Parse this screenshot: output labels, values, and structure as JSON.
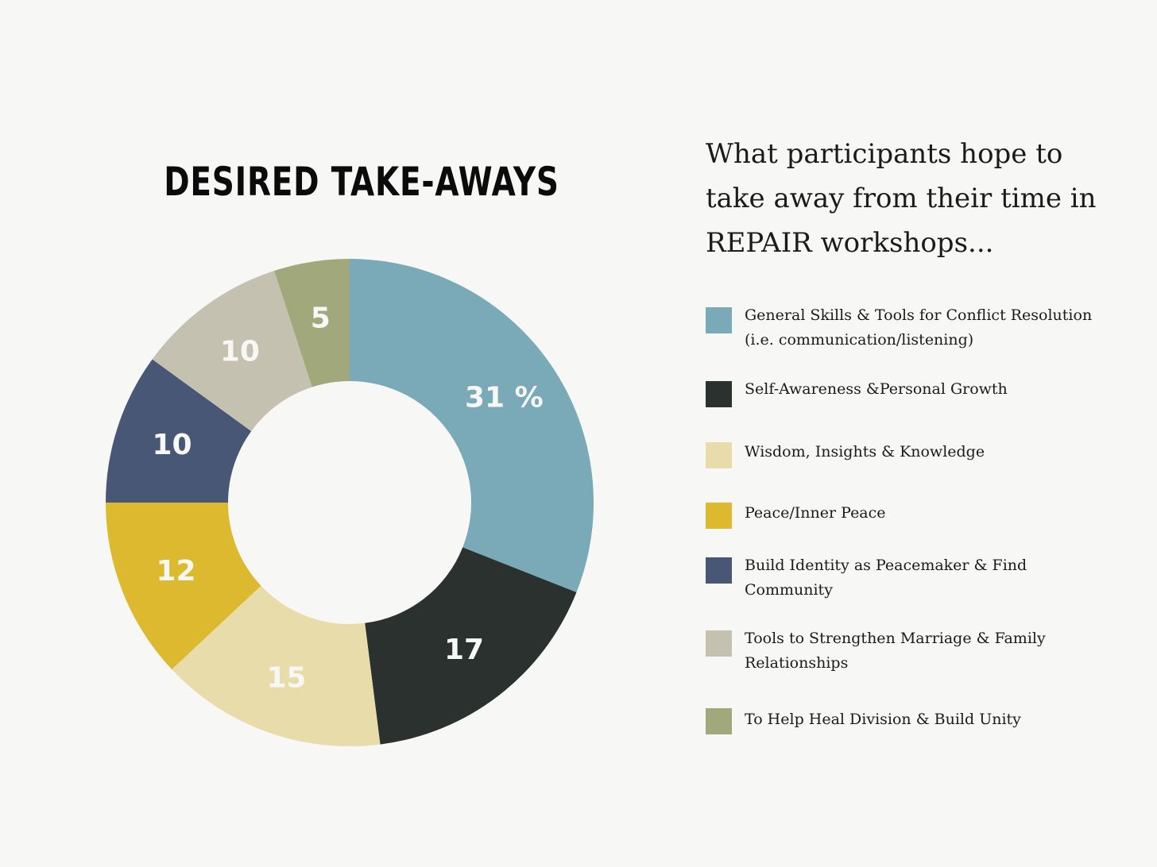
{
  "chart_data": {
    "type": "pie",
    "title": "DESIRED TAKE-AWAYS",
    "subtitle": "What participants hope to take away from their time in REPAIR workshops...",
    "categories": [
      "General Skills & Tools for Conflict Resolution (i.e. communication/listening)",
      "Self-Awareness &Personal Growth",
      " Wisdom, Insights & Knowledge",
      "Peace/Inner Peace",
      "Build Identity as Peacemaker & Find Community",
      "Tools to Strengthen Marriage & Family Relationships",
      "To Help Heal Division & Build Unity"
    ],
    "values": [
      31,
      17,
      15,
      12,
      10,
      10,
      5
    ],
    "data_labels": [
      "31 %",
      "17",
      "15",
      "12",
      "10",
      "10",
      "5"
    ],
    "colors": [
      "#7aa9b8",
      "#2a312e",
      "#e9dcab",
      "#dcb92e",
      "#485775",
      "#c4c1b0",
      "#a1a87b"
    ],
    "unit": "%",
    "donut": true,
    "legend_position": "right"
  },
  "background_color": "#f7f7f5"
}
